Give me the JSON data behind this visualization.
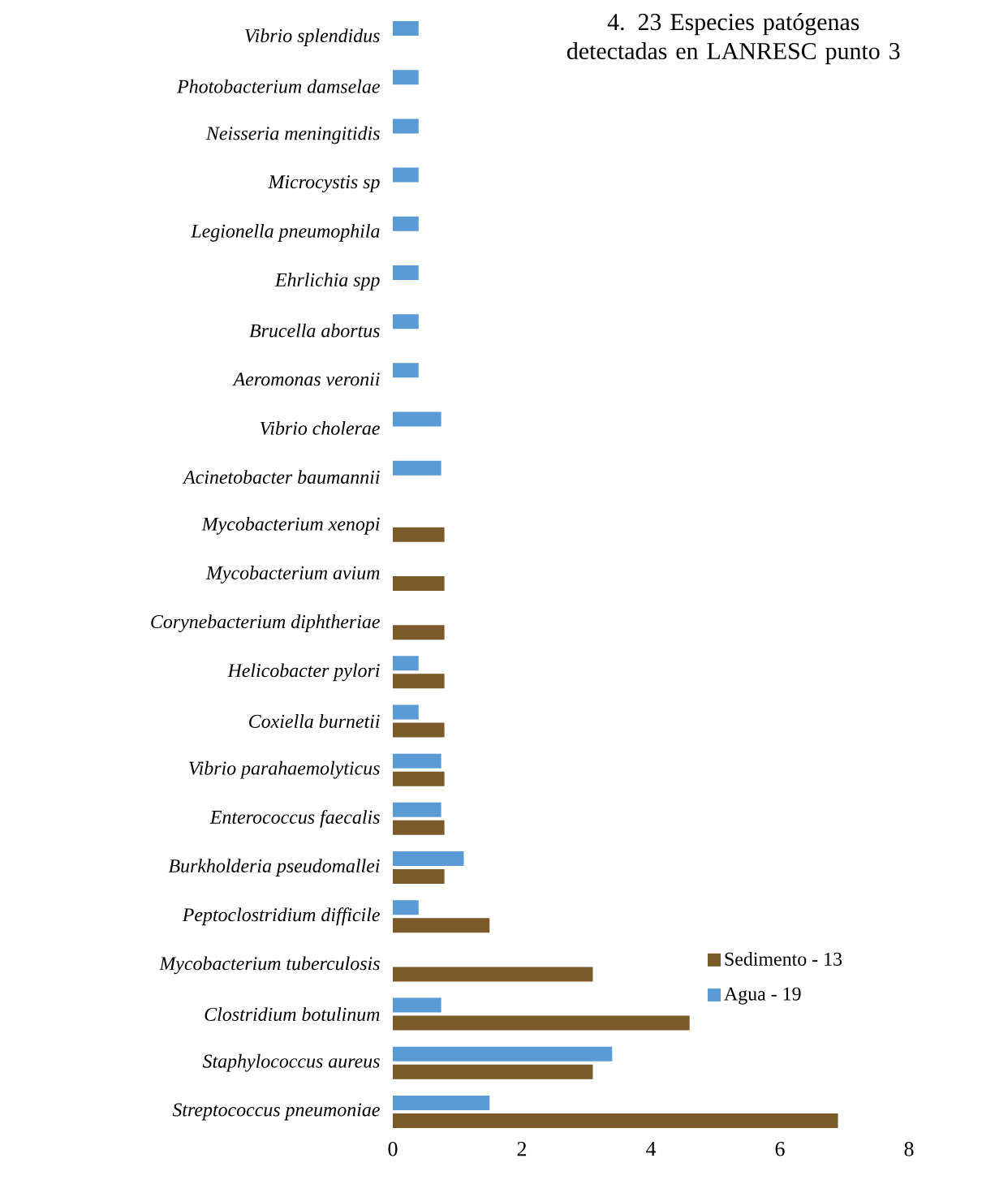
{
  "chart_data": {
    "type": "bar",
    "orientation": "horizontal",
    "title": "4. 23 Especies patógenas detectadas en LANRESC punto 3",
    "categories": [
      "Vibrio splendidus",
      "Photobacterium damselae",
      "Neisseria meningitidis",
      "Microcystis sp",
      "Legionella pneumophila",
      "Ehrlichia spp",
      "Brucella abortus",
      "Aeromonas veronii",
      "Vibrio cholerae",
      "Acinetobacter baumannii",
      "Mycobacterium xenopi",
      "Mycobacterium avium",
      "Corynebacterium diphtheriae",
      "Helicobacter pylori",
      "Coxiella burnetii",
      "Vibrio parahaemolyticus",
      "Enterococcus faecalis",
      "Burkholderia pseudomallei",
      "Peptoclostridium difficile",
      "Mycobacterium tuberculosis",
      "Clostridium botulinum",
      "Staphylococcus aureus",
      "Streptococcus pneumoniae"
    ],
    "series": [
      {
        "name": "Sedimento - 13",
        "color": "#7a5a28",
        "values": [
          null,
          null,
          null,
          null,
          null,
          null,
          null,
          null,
          null,
          null,
          0.8,
          0.8,
          0.8,
          0.8,
          0.8,
          0.8,
          0.8,
          0.8,
          1.5,
          3.1,
          4.6,
          3.1,
          6.9
        ]
      },
      {
        "name": "Agua - 19",
        "color": "#5b9bd5",
        "values": [
          0.4,
          0.4,
          0.4,
          0.4,
          0.4,
          0.4,
          0.4,
          0.4,
          0.75,
          0.75,
          null,
          null,
          null,
          0.4,
          0.4,
          0.75,
          0.75,
          1.1,
          0.4,
          null,
          0.75,
          3.4,
          1.5
        ]
      }
    ],
    "xlim": [
      0,
      8
    ],
    "xticks": [
      0,
      2,
      4,
      6,
      8
    ],
    "legend": "bottom right"
  }
}
